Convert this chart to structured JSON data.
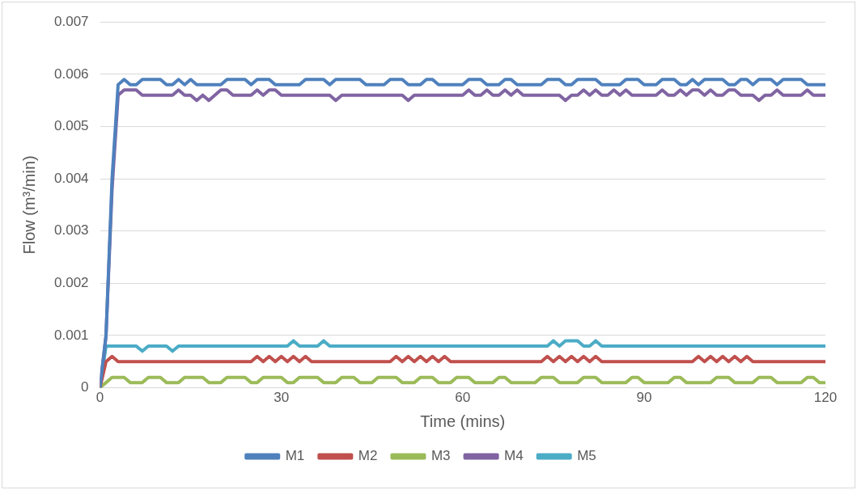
{
  "chart_data": {
    "type": "line",
    "xlabel": "Time (mins)",
    "ylabel": "Flow (m³/min)",
    "x": [
      0,
      1,
      2,
      3,
      4,
      5,
      6,
      7,
      8,
      9,
      10,
      11,
      12,
      13,
      14,
      15,
      16,
      17,
      18,
      19,
      20,
      21,
      22,
      23,
      24,
      25,
      26,
      27,
      28,
      29,
      30,
      31,
      32,
      33,
      34,
      35,
      36,
      37,
      38,
      39,
      40,
      41,
      42,
      43,
      44,
      45,
      46,
      47,
      48,
      49,
      50,
      51,
      52,
      53,
      54,
      55,
      56,
      57,
      58,
      59,
      60,
      61,
      62,
      63,
      64,
      65,
      66,
      67,
      68,
      69,
      70,
      71,
      72,
      73,
      74,
      75,
      76,
      77,
      78,
      79,
      80,
      81,
      82,
      83,
      84,
      85,
      86,
      87,
      88,
      89,
      90,
      91,
      92,
      93,
      94,
      95,
      96,
      97,
      98,
      99,
      100,
      101,
      102,
      103,
      104,
      105,
      106,
      107,
      108,
      109,
      110,
      111,
      112,
      113,
      114,
      115,
      116,
      117,
      118,
      119,
      120
    ],
    "xlim": [
      0,
      120
    ],
    "xticks": [
      0,
      30,
      60,
      90,
      120
    ],
    "ylim": [
      0,
      0.007
    ],
    "yticks": [
      0,
      0.001,
      0.002,
      0.003,
      0.004,
      0.005,
      0.006,
      0.007
    ],
    "grid": "y",
    "legend": "bottom",
    "marker": "none",
    "line_style": "solid",
    "series": [
      {
        "name": "M1",
        "color": "#4f81bd",
        "values": [
          0,
          0.001,
          0.004,
          0.0058,
          0.0059,
          0.0058,
          0.0058,
          0.0059,
          0.0059,
          0.0059,
          0.0059,
          0.0058,
          0.0058,
          0.0059,
          0.0058,
          0.0059,
          0.0058,
          0.0058,
          0.0058,
          0.0058,
          0.0058,
          0.0059,
          0.0059,
          0.0059,
          0.0059,
          0.0058,
          0.0059,
          0.0059,
          0.0059,
          0.0058,
          0.0058,
          0.0058,
          0.0058,
          0.0058,
          0.0059,
          0.0059,
          0.0059,
          0.0059,
          0.0058,
          0.0059,
          0.0059,
          0.0059,
          0.0059,
          0.0059,
          0.0058,
          0.0058,
          0.0058,
          0.0058,
          0.0059,
          0.0059,
          0.0059,
          0.0058,
          0.0058,
          0.0058,
          0.0059,
          0.0059,
          0.0058,
          0.0058,
          0.0058,
          0.0058,
          0.0058,
          0.0059,
          0.0059,
          0.0059,
          0.0058,
          0.0058,
          0.0058,
          0.0059,
          0.0059,
          0.0058,
          0.0058,
          0.0058,
          0.0058,
          0.0058,
          0.0059,
          0.0059,
          0.0059,
          0.0058,
          0.0058,
          0.0059,
          0.0059,
          0.0059,
          0.0059,
          0.0058,
          0.0058,
          0.0058,
          0.0058,
          0.0059,
          0.0059,
          0.0059,
          0.0058,
          0.0058,
          0.0058,
          0.0059,
          0.0059,
          0.0059,
          0.0058,
          0.0058,
          0.0059,
          0.0058,
          0.0059,
          0.0059,
          0.0059,
          0.0059,
          0.0058,
          0.0058,
          0.0059,
          0.0059,
          0.0058,
          0.0059,
          0.0059,
          0.0059,
          0.0058,
          0.0059,
          0.0059,
          0.0059,
          0.0059,
          0.0058,
          0.0058,
          0.0058,
          0.0058
        ]
      },
      {
        "name": "M2",
        "color": "#c0504d",
        "values": [
          0,
          0.0005,
          0.0006,
          0.0005,
          0.0005,
          0.0005,
          0.0005,
          0.0005,
          0.0005,
          0.0005,
          0.0005,
          0.0005,
          0.0005,
          0.0005,
          0.0005,
          0.0005,
          0.0005,
          0.0005,
          0.0005,
          0.0005,
          0.0005,
          0.0005,
          0.0005,
          0.0005,
          0.0005,
          0.0005,
          0.0006,
          0.0005,
          0.0006,
          0.0005,
          0.0006,
          0.0005,
          0.0006,
          0.0005,
          0.0006,
          0.0005,
          0.0005,
          0.0005,
          0.0005,
          0.0005,
          0.0005,
          0.0005,
          0.0005,
          0.0005,
          0.0005,
          0.0005,
          0.0005,
          0.0005,
          0.0005,
          0.0006,
          0.0005,
          0.0006,
          0.0005,
          0.0006,
          0.0005,
          0.0006,
          0.0005,
          0.0006,
          0.0005,
          0.0005,
          0.0005,
          0.0005,
          0.0005,
          0.0005,
          0.0005,
          0.0005,
          0.0005,
          0.0005,
          0.0005,
          0.0005,
          0.0005,
          0.0005,
          0.0005,
          0.0005,
          0.0006,
          0.0005,
          0.0006,
          0.0005,
          0.0006,
          0.0005,
          0.0006,
          0.0005,
          0.0006,
          0.0005,
          0.0005,
          0.0005,
          0.0005,
          0.0005,
          0.0005,
          0.0005,
          0.0005,
          0.0005,
          0.0005,
          0.0005,
          0.0005,
          0.0005,
          0.0005,
          0.0005,
          0.0005,
          0.0006,
          0.0005,
          0.0006,
          0.0005,
          0.0006,
          0.0005,
          0.0006,
          0.0005,
          0.0006,
          0.0005,
          0.0005,
          0.0005,
          0.0005,
          0.0005,
          0.0005,
          0.0005,
          0.0005,
          0.0005,
          0.0005,
          0.0005,
          0.0005,
          0.0005
        ]
      },
      {
        "name": "M3",
        "color": "#9bbb59",
        "values": [
          0,
          0.0001,
          0.0002,
          0.0002,
          0.0002,
          0.0001,
          0.0001,
          0.0001,
          0.0002,
          0.0002,
          0.0002,
          0.0001,
          0.0001,
          0.0001,
          0.0002,
          0.0002,
          0.0002,
          0.0002,
          0.0001,
          0.0001,
          0.0001,
          0.0002,
          0.0002,
          0.0002,
          0.0002,
          0.0001,
          0.0001,
          0.0002,
          0.0002,
          0.0002,
          0.0002,
          0.0001,
          0.0001,
          0.0002,
          0.0002,
          0.0002,
          0.0002,
          0.0001,
          0.0001,
          0.0001,
          0.0002,
          0.0002,
          0.0002,
          0.0001,
          0.0001,
          0.0001,
          0.0002,
          0.0002,
          0.0002,
          0.0002,
          0.0001,
          0.0001,
          0.0001,
          0.0002,
          0.0002,
          0.0002,
          0.0001,
          0.0001,
          0.0001,
          0.0002,
          0.0002,
          0.0002,
          0.0001,
          0.0001,
          0.0001,
          0.0001,
          0.0002,
          0.0002,
          0.0001,
          0.0001,
          0.0001,
          0.0001,
          0.0001,
          0.0002,
          0.0002,
          0.0002,
          0.0001,
          0.0001,
          0.0001,
          0.0001,
          0.0002,
          0.0002,
          0.0002,
          0.0001,
          0.0001,
          0.0001,
          0.0001,
          0.0001,
          0.0002,
          0.0002,
          0.0001,
          0.0001,
          0.0001,
          0.0001,
          0.0001,
          0.0002,
          0.0002,
          0.0001,
          0.0001,
          0.0001,
          0.0001,
          0.0001,
          0.0002,
          0.0002,
          0.0002,
          0.0001,
          0.0001,
          0.0001,
          0.0001,
          0.0002,
          0.0002,
          0.0002,
          0.0001,
          0.0001,
          0.0001,
          0.0001,
          0.0001,
          0.0002,
          0.0002,
          0.0001,
          0.0001
        ]
      },
      {
        "name": "M4",
        "color": "#8064a2",
        "values": [
          0,
          0.001,
          0.0038,
          0.0056,
          0.0057,
          0.0057,
          0.0057,
          0.0056,
          0.0056,
          0.0056,
          0.0056,
          0.0056,
          0.0056,
          0.0057,
          0.0056,
          0.0056,
          0.0055,
          0.0056,
          0.0055,
          0.0056,
          0.0057,
          0.0057,
          0.0056,
          0.0056,
          0.0056,
          0.0056,
          0.0057,
          0.0056,
          0.0057,
          0.0057,
          0.0056,
          0.0056,
          0.0056,
          0.0056,
          0.0056,
          0.0056,
          0.0056,
          0.0056,
          0.0056,
          0.0055,
          0.0056,
          0.0056,
          0.0056,
          0.0056,
          0.0056,
          0.0056,
          0.0056,
          0.0056,
          0.0056,
          0.0056,
          0.0056,
          0.0055,
          0.0056,
          0.0056,
          0.0056,
          0.0056,
          0.0056,
          0.0056,
          0.0056,
          0.0056,
          0.0056,
          0.0057,
          0.0056,
          0.0056,
          0.0057,
          0.0056,
          0.0056,
          0.0057,
          0.0056,
          0.0057,
          0.0056,
          0.0056,
          0.0056,
          0.0056,
          0.0056,
          0.0056,
          0.0056,
          0.0055,
          0.0056,
          0.0056,
          0.0057,
          0.0056,
          0.0057,
          0.0056,
          0.0056,
          0.0057,
          0.0056,
          0.0057,
          0.0056,
          0.0056,
          0.0056,
          0.0056,
          0.0056,
          0.0057,
          0.0056,
          0.0056,
          0.0057,
          0.0056,
          0.0057,
          0.0057,
          0.0056,
          0.0057,
          0.0056,
          0.0056,
          0.0057,
          0.0057,
          0.0056,
          0.0056,
          0.0056,
          0.0055,
          0.0056,
          0.0056,
          0.0057,
          0.0056,
          0.0056,
          0.0056,
          0.0056,
          0.0057,
          0.0056,
          0.0056,
          0.0056
        ]
      },
      {
        "name": "M5",
        "color": "#4bacc6",
        "values": [
          0,
          0.0008,
          0.0008,
          0.0008,
          0.0008,
          0.0008,
          0.0008,
          0.0007,
          0.0008,
          0.0008,
          0.0008,
          0.0008,
          0.0007,
          0.0008,
          0.0008,
          0.0008,
          0.0008,
          0.0008,
          0.0008,
          0.0008,
          0.0008,
          0.0008,
          0.0008,
          0.0008,
          0.0008,
          0.0008,
          0.0008,
          0.0008,
          0.0008,
          0.0008,
          0.0008,
          0.0008,
          0.0009,
          0.0008,
          0.0008,
          0.0008,
          0.0008,
          0.0009,
          0.0008,
          0.0008,
          0.0008,
          0.0008,
          0.0008,
          0.0008,
          0.0008,
          0.0008,
          0.0008,
          0.0008,
          0.0008,
          0.0008,
          0.0008,
          0.0008,
          0.0008,
          0.0008,
          0.0008,
          0.0008,
          0.0008,
          0.0008,
          0.0008,
          0.0008,
          0.0008,
          0.0008,
          0.0008,
          0.0008,
          0.0008,
          0.0008,
          0.0008,
          0.0008,
          0.0008,
          0.0008,
          0.0008,
          0.0008,
          0.0008,
          0.0008,
          0.0008,
          0.0009,
          0.0008,
          0.0009,
          0.0009,
          0.0009,
          0.0008,
          0.0008,
          0.0009,
          0.0008,
          0.0008,
          0.0008,
          0.0008,
          0.0008,
          0.0008,
          0.0008,
          0.0008,
          0.0008,
          0.0008,
          0.0008,
          0.0008,
          0.0008,
          0.0008,
          0.0008,
          0.0008,
          0.0008,
          0.0008,
          0.0008,
          0.0008,
          0.0008,
          0.0008,
          0.0008,
          0.0008,
          0.0008,
          0.0008,
          0.0008,
          0.0008,
          0.0008,
          0.0008,
          0.0008,
          0.0008,
          0.0008,
          0.0008,
          0.0008,
          0.0008,
          0.0008,
          0.0008
        ]
      }
    ]
  }
}
